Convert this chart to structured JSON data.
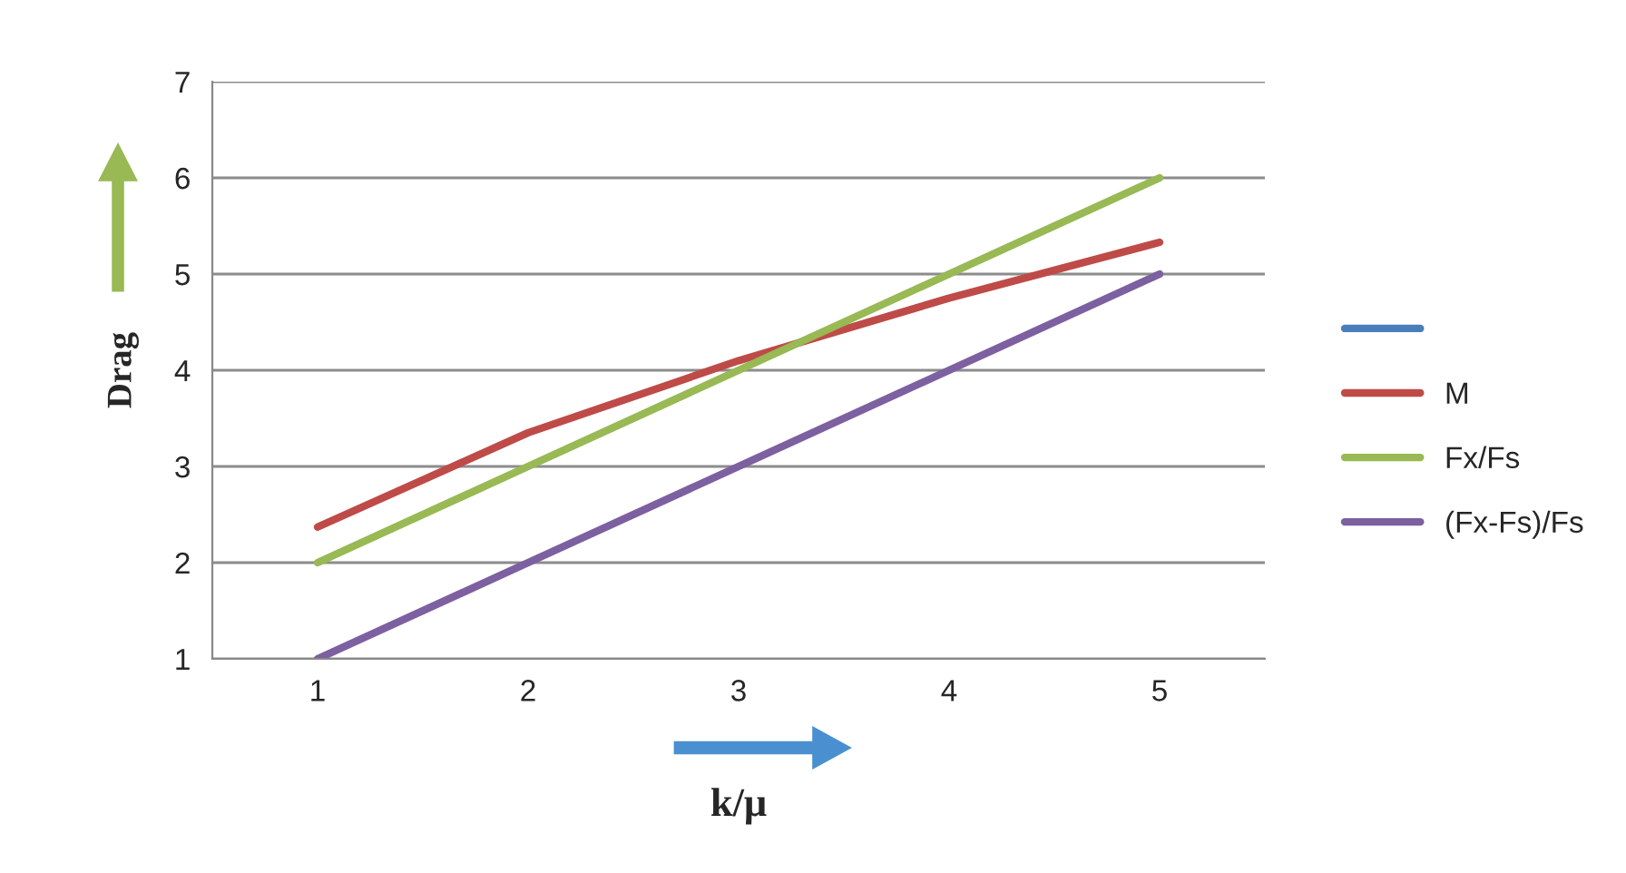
{
  "chart_data": {
    "type": "line",
    "xlabel": "k/μ",
    "ylabel": "Drag",
    "categories": [
      "1",
      "2",
      "3",
      "4",
      "5"
    ],
    "series": [
      {
        "color": "#4a7ebb",
        "values": [
          null,
          null,
          null,
          null,
          null
        ]
      },
      {
        "name": "M",
        "color": "#be4b48",
        "values": [
          2.37,
          3.35,
          4.1,
          4.75,
          5.33
        ]
      },
      {
        "name": "Fx/Fs",
        "color": "#98b954",
        "values": [
          2,
          3,
          4,
          5,
          6
        ]
      },
      {
        "name": "(Fx-Fs)/Fs",
        "color": "#7d60a0",
        "values": [
          1,
          2,
          3,
          4,
          5
        ]
      }
    ],
    "ylim": [
      1,
      7
    ],
    "yticks": [
      1,
      2,
      3,
      4,
      5,
      6,
      7
    ],
    "grid": "y",
    "legend": "right",
    "marker": "none",
    "line_style": "solid"
  }
}
